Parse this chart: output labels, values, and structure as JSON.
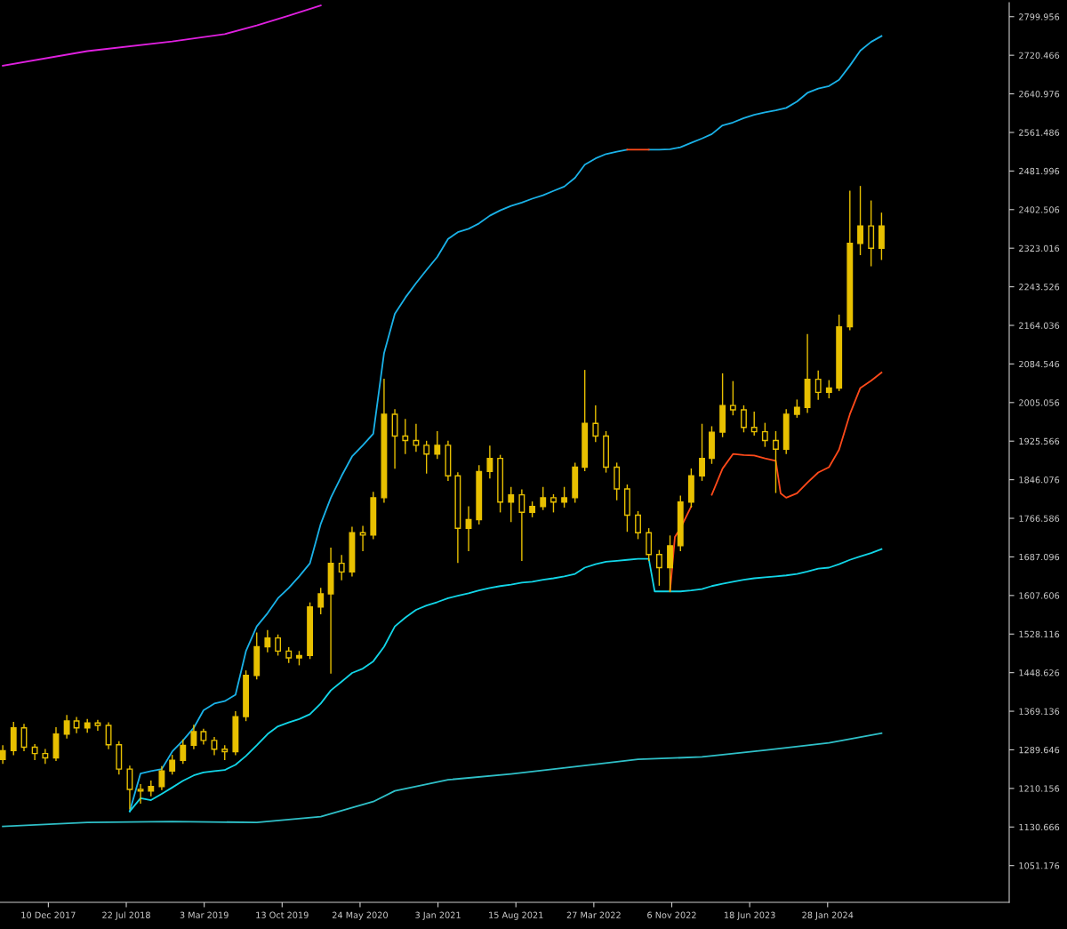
{
  "chart_data": {
    "type": "candlestick",
    "color": "#e8c000",
    "x": [
      "2017-08",
      "2017-09",
      "2017-10",
      "2017-11",
      "2017-12",
      "2018-01",
      "2018-02",
      "2018-03",
      "2018-04",
      "2018-05",
      "2018-06",
      "2018-07",
      "2018-08",
      "2018-09",
      "2018-10",
      "2018-11",
      "2018-12",
      "2019-01",
      "2019-02",
      "2019-03",
      "2019-04",
      "2019-05",
      "2019-06",
      "2019-07",
      "2019-08",
      "2019-09",
      "2019-10",
      "2019-11",
      "2019-12",
      "2020-01",
      "2020-02",
      "2020-03",
      "2020-04",
      "2020-05",
      "2020-06",
      "2020-07",
      "2020-08",
      "2020-09",
      "2020-10",
      "2020-11",
      "2020-12",
      "2021-01",
      "2021-02",
      "2021-03",
      "2021-04",
      "2021-05",
      "2021-06",
      "2021-07",
      "2021-08",
      "2021-09",
      "2021-10",
      "2021-11",
      "2021-12",
      "2022-01",
      "2022-02",
      "2022-03",
      "2022-04",
      "2022-05",
      "2022-06",
      "2022-07",
      "2022-08",
      "2022-09",
      "2022-10",
      "2022-11",
      "2022-12",
      "2023-01",
      "2023-02",
      "2023-03",
      "2023-04",
      "2023-05",
      "2023-06",
      "2023-07",
      "2023-08",
      "2023-09",
      "2023-10",
      "2023-11",
      "2023-12",
      "2024-01",
      "2024-02",
      "2024-03",
      "2024-04",
      "2024-05",
      "2024-06",
      "2024-07"
    ],
    "ohlc": [
      [
        1270,
        1298,
        1262,
        1288
      ],
      [
        1288,
        1346,
        1280,
        1335
      ],
      [
        1335,
        1342,
        1288,
        1295
      ],
      [
        1295,
        1300,
        1270,
        1282
      ],
      [
        1282,
        1290,
        1262,
        1273
      ],
      [
        1273,
        1335,
        1268,
        1322
      ],
      [
        1322,
        1360,
        1314,
        1349
      ],
      [
        1349,
        1356,
        1325,
        1335
      ],
      [
        1335,
        1352,
        1326,
        1345
      ],
      [
        1345,
        1350,
        1330,
        1340
      ],
      [
        1340,
        1345,
        1292,
        1300
      ],
      [
        1300,
        1306,
        1240,
        1250
      ],
      [
        1250,
        1256,
        1168,
        1208
      ],
      [
        1208,
        1218,
        1180,
        1205
      ],
      [
        1205,
        1225,
        1195,
        1214
      ],
      [
        1214,
        1255,
        1208,
        1246
      ],
      [
        1246,
        1278,
        1240,
        1268
      ],
      [
        1268,
        1310,
        1262,
        1299
      ],
      [
        1299,
        1340,
        1292,
        1327
      ],
      [
        1327,
        1332,
        1302,
        1309
      ],
      [
        1309,
        1315,
        1280,
        1291
      ],
      [
        1291,
        1298,
        1270,
        1286
      ],
      [
        1286,
        1368,
        1280,
        1358
      ],
      [
        1358,
        1452,
        1350,
        1443
      ],
      [
        1443,
        1530,
        1436,
        1502
      ],
      [
        1502,
        1535,
        1492,
        1520
      ],
      [
        1520,
        1526,
        1485,
        1493
      ],
      [
        1493,
        1500,
        1470,
        1479
      ],
      [
        1479,
        1492,
        1465,
        1484
      ],
      [
        1484,
        1592,
        1478,
        1584
      ],
      [
        1584,
        1622,
        1570,
        1611
      ],
      [
        1611,
        1705,
        1448,
        1674
      ],
      [
        1674,
        1690,
        1640,
        1656
      ],
      [
        1656,
        1748,
        1648,
        1737
      ],
      [
        1737,
        1750,
        1700,
        1732
      ],
      [
        1732,
        1820,
        1725,
        1809
      ],
      [
        1809,
        2053,
        1800,
        1981
      ],
      [
        1981,
        1990,
        1870,
        1936
      ],
      [
        1936,
        1970,
        1900,
        1927
      ],
      [
        1927,
        1960,
        1905,
        1917
      ],
      [
        1917,
        1925,
        1860,
        1899
      ],
      [
        1899,
        1945,
        1890,
        1917
      ],
      [
        1917,
        1925,
        1845,
        1854
      ],
      [
        1854,
        1860,
        1676,
        1746
      ],
      [
        1746,
        1790,
        1700,
        1764
      ],
      [
        1764,
        1875,
        1755,
        1863
      ],
      [
        1863,
        1915,
        1850,
        1890
      ],
      [
        1890,
        1896,
        1780,
        1800
      ],
      [
        1800,
        1830,
        1760,
        1815
      ],
      [
        1815,
        1825,
        1680,
        1779
      ],
      [
        1779,
        1800,
        1770,
        1791
      ],
      [
        1791,
        1830,
        1785,
        1809
      ],
      [
        1809,
        1815,
        1780,
        1800
      ],
      [
        1800,
        1830,
        1790,
        1809
      ],
      [
        1809,
        1880,
        1800,
        1872
      ],
      [
        1872,
        2071,
        1865,
        1962
      ],
      [
        1962,
        1998,
        1925,
        1936
      ],
      [
        1936,
        1945,
        1862,
        1872
      ],
      [
        1872,
        1880,
        1805,
        1827
      ],
      [
        1827,
        1835,
        1740,
        1773
      ],
      [
        1773,
        1780,
        1725,
        1737
      ],
      [
        1737,
        1745,
        1680,
        1692
      ],
      [
        1692,
        1700,
        1629,
        1665
      ],
      [
        1665,
        1730,
        1616,
        1710
      ],
      [
        1710,
        1812,
        1700,
        1800
      ],
      [
        1800,
        1868,
        1790,
        1854
      ],
      [
        1854,
        1960,
        1845,
        1890
      ],
      [
        1890,
        1955,
        1880,
        1944
      ],
      [
        1944,
        2064,
        1935,
        1999
      ],
      [
        1999,
        2048,
        1980,
        1990
      ],
      [
        1990,
        1998,
        1945,
        1954
      ],
      [
        1954,
        1985,
        1938,
        1945
      ],
      [
        1945,
        1962,
        1915,
        1927
      ],
      [
        1927,
        1945,
        1820,
        1909
      ],
      [
        1909,
        1990,
        1900,
        1981
      ],
      [
        1981,
        2010,
        1975,
        1995
      ],
      [
        1995,
        2145,
        1985,
        2053
      ],
      [
        2053,
        2070,
        2012,
        2026
      ],
      [
        2026,
        2050,
        2015,
        2035
      ],
      [
        2035,
        2185,
        2030,
        2161
      ],
      [
        2161,
        2440,
        2155,
        2333
      ],
      [
        2333,
        2450,
        2310,
        2369
      ],
      [
        2369,
        2420,
        2287,
        2323
      ],
      [
        2323,
        2395,
        2300,
        2369
      ]
    ],
    "series": [
      {
        "type": "line",
        "color": "#e020e0",
        "x": [
          "2017-08",
          "2018-04",
          "2018-12",
          "2019-05",
          "2019-08",
          "2019-11",
          "2020-02"
        ],
        "values": [
          2699,
          2729,
          2749,
          2764,
          2782,
          2802,
          2823
        ]
      },
      {
        "type": "line",
        "color": "#1ab2e8",
        "x": [
          "2018-08",
          "2018-09",
          "2018-10",
          "2018-11",
          "2018-12",
          "2019-01",
          "2019-02",
          "2019-03",
          "2019-04",
          "2019-05",
          "2019-06",
          "2019-07",
          "2019-08",
          "2019-09",
          "2019-10",
          "2019-11",
          "2019-12",
          "2020-01",
          "2020-02",
          "2020-03",
          "2020-04",
          "2020-05",
          "2020-06",
          "2020-07",
          "2020-08",
          "2020-09",
          "2020-10",
          "2020-11",
          "2020-12",
          "2021-01",
          "2021-02",
          "2021-03",
          "2021-04",
          "2021-05",
          "2021-06",
          "2021-07",
          "2021-08",
          "2021-09",
          "2021-10",
          "2021-11",
          "2021-12",
          "2022-01",
          "2022-02",
          "2022-03",
          "2022-04",
          "2022-05",
          "2022-06",
          "2022-07",
          "2022-08",
          "2022-09",
          "2022-10",
          "2022-11",
          "2022-12",
          "2023-01",
          "2023-02",
          "2023-03",
          "2023-04",
          "2023-05",
          "2023-06",
          "2023-07",
          "2023-08",
          "2023-09",
          "2023-10",
          "2023-11",
          "2023-12",
          "2024-01",
          "2024-02",
          "2024-03",
          "2024-04",
          "2024-05",
          "2024-06",
          "2024-07"
        ],
        "values": [
          1163,
          1241,
          1246,
          1250,
          1286,
          1309,
          1335,
          1371,
          1385,
          1390,
          1403,
          1493,
          1544,
          1571,
          1602,
          1623,
          1647,
          1674,
          1755,
          1809,
          1854,
          1894,
          1917,
          1941,
          2107,
          2188,
          2221,
          2251,
          2278,
          2305,
          2342,
          2356,
          2363,
          2374,
          2390,
          2401,
          2410,
          2417,
          2425,
          2432,
          2441,
          2450,
          2468,
          2495,
          2508,
          2517,
          2522,
          2526,
          null,
          2526,
          2526,
          2527,
          2531,
          2540,
          2549,
          2558,
          2576,
          2582,
          2591,
          2598,
          2603,
          2607,
          2612,
          2625,
          2643,
          2652,
          2657,
          2670,
          2699,
          2730,
          2748,
          2760
        ]
      },
      {
        "type": "line",
        "color": "#ff4a1a",
        "x": [
          "2022-07",
          "2022-08",
          "2022-09"
        ],
        "values": [
          2526,
          2526,
          2526
        ]
      },
      {
        "type": "line",
        "color": "#12d6e8",
        "x": [
          "2018-08",
          "2018-09",
          "2018-10",
          "2018-11",
          "2018-12",
          "2019-01",
          "2019-02",
          "2019-03",
          "2019-04",
          "2019-05",
          "2019-06",
          "2019-07",
          "2019-08",
          "2019-09",
          "2019-10",
          "2019-11",
          "2019-12",
          "2020-01",
          "2020-02",
          "2020-03",
          "2020-04",
          "2020-05",
          "2020-06",
          "2020-07",
          "2020-08",
          "2020-09",
          "2020-10",
          "2020-11",
          "2020-12",
          "2021-01",
          "2021-02",
          "2021-03",
          "2021-04",
          "2021-05",
          "2021-06",
          "2021-07",
          "2021-08",
          "2021-09",
          "2021-10",
          "2021-11",
          "2021-12",
          "2022-01",
          "2022-02",
          "2022-03",
          "2022-04",
          "2022-05",
          "2022-06",
          "2022-07",
          "2022-08",
          "2022-09",
          "2022-09-18",
          "2022-10",
          "2022-11",
          "2022-12",
          "2023-01",
          "2023-02",
          "2023-03",
          "2023-04",
          "2023-05",
          "2023-06",
          "2023-07",
          "2023-08",
          "2023-09",
          "2023-10",
          "2023-11",
          "2023-12",
          "2024-01",
          "2024-02",
          "2024-03",
          "2024-04",
          "2024-05",
          "2024-06",
          "2024-07"
        ],
        "values": [
          1163,
          1190,
          1186,
          1199,
          1212,
          1226,
          1237,
          1243,
          1246,
          1248,
          1259,
          1277,
          1299,
          1322,
          1338,
          1346,
          1353,
          1363,
          1385,
          1412,
          1430,
          1448,
          1457,
          1472,
          1502,
          1544,
          1562,
          1578,
          1587,
          1594,
          1602,
          1607,
          1612,
          1618,
          1623,
          1627,
          1630,
          1634,
          1636,
          1640,
          1643,
          1647,
          1652,
          1665,
          1672,
          1677,
          1679,
          1681,
          1683,
          1683,
          1616,
          1616,
          1616,
          1616,
          1618,
          1621,
          1627,
          1632,
          1636,
          1640,
          1643,
          1645,
          1647,
          1649,
          1652,
          1657,
          1663,
          1665,
          1672,
          1681,
          1688,
          1695,
          1703
        ]
      },
      {
        "type": "line",
        "color": "#2fc0c8",
        "x": [
          "2017-08",
          "2018-04",
          "2018-12",
          "2019-08",
          "2020-02",
          "2020-07",
          "2020-09",
          "2021-02",
          "2021-08",
          "2022-02",
          "2022-08",
          "2023-02",
          "2023-08",
          "2024-02",
          "2024-07"
        ],
        "values": [
          1132,
          1140,
          1142,
          1140,
          1152,
          1183,
          1205,
          1228,
          1240,
          1255,
          1270,
          1275,
          1289,
          1304,
          1324
        ]
      },
      {
        "type": "line",
        "color": "#ff4a1a",
        "x": [
          "2022-11",
          "2022-11-15",
          "2022-12",
          "2023-01",
          "2023-02",
          "2023-03",
          "2023-04",
          "2023-05",
          "2023-06",
          "2023-07",
          "2023-08",
          "2023-09",
          "2023-09-15",
          "2023-10",
          "2023-11",
          "2023-12",
          "2024-01",
          "2024-02",
          "2024-03",
          "2024-04",
          "2024-05",
          "2024-06",
          "2024-07"
        ],
        "values": [
          1616,
          1728,
          1746,
          1791,
          null,
          1815,
          1869,
          1899,
          1897,
          1896,
          1890,
          1885,
          1818,
          1809,
          1818,
          1840,
          1861,
          1872,
          1908,
          1981,
          2035,
          2050,
          2067
        ]
      }
    ],
    "xlim": [
      "2017-07-24",
      "2025-07-03"
    ],
    "xticks": [
      {
        "value": "2017-12-10",
        "label": "10 Dec 2017"
      },
      {
        "value": "2018-07-22",
        "label": "22 Jul 2018"
      },
      {
        "value": "2019-03-03",
        "label": "3 Mar 2019"
      },
      {
        "value": "2019-10-13",
        "label": "13 Oct 2019"
      },
      {
        "value": "2020-05-24",
        "label": "24 May 2020"
      },
      {
        "value": "2021-01-03",
        "label": "3 Jan 2021"
      },
      {
        "value": "2021-08-15",
        "label": "15 Aug 2021"
      },
      {
        "value": "2022-03-27",
        "label": "27 Mar 2022"
      },
      {
        "value": "2022-11-06",
        "label": "6 Nov 2022"
      },
      {
        "value": "2023-06-18",
        "label": "18 Jun 2023"
      },
      {
        "value": "2024-01-28",
        "label": "28 Jan 2024"
      }
    ],
    "ylim": [
      975.5,
      2828.8
    ],
    "yticks": [
      1051.176,
      1130.666,
      1210.156,
      1289.646,
      1369.136,
      1448.626,
      1528.116,
      1607.606,
      1687.096,
      1766.586,
      1846.076,
      1925.566,
      2005.056,
      2084.546,
      2164.036,
      2243.526,
      2323.016,
      2402.506,
      2481.996,
      2561.486,
      2640.976,
      2720.466,
      2799.956
    ]
  }
}
